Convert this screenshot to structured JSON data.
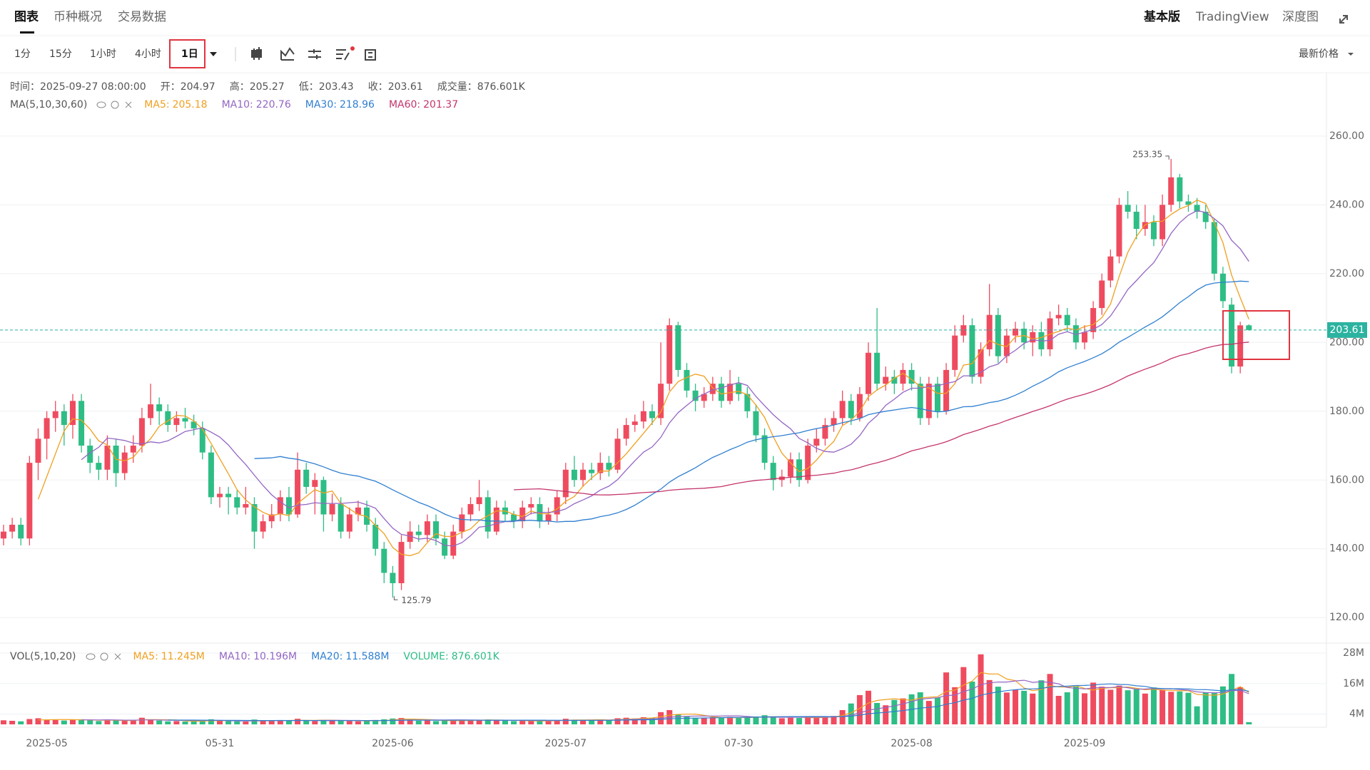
{
  "tabs": [
    "图表",
    "币种概况",
    "交易数据"
  ],
  "top_right": [
    "基本版",
    "TradingView",
    "深度图"
  ],
  "intervals": [
    "1分",
    "15分",
    "1小时",
    "4小时",
    "1日"
  ],
  "price_type": "最新价格",
  "chart_data": {
    "type": "candlestick",
    "time_label": "时间：",
    "time": "2025-09-27 08:00:00",
    "ohlc_labels": [
      "开：",
      "高：",
      "低：",
      "收："
    ],
    "volume_label": "成交量：",
    "volume_text": "876.601K",
    "ma_title": "MA(5,10,30,60)",
    "ma": [
      {
        "label": "MA5:",
        "value": 205.18,
        "period": 5,
        "color": "#f0a020"
      },
      {
        "label": "MA10:",
        "value": 220.76,
        "period": 10,
        "color": "#9466c4"
      },
      {
        "label": "MA30:",
        "value": 218.96,
        "period": 30,
        "color": "#2f7fd0"
      },
      {
        "label": "MA60:",
        "value": 201.37,
        "period": 60,
        "color": "#c4356c"
      }
    ],
    "vol_title": "VOL(5,10,20)",
    "vol_ma": [
      {
        "label": "MA5:",
        "value": "11.245M",
        "period": 5,
        "color": "#f0a020"
      },
      {
        "label": "MA10:",
        "value": "10.196M",
        "period": 10,
        "color": "#9466c4"
      },
      {
        "label": "MA20:",
        "value": "11.588M",
        "period": 20,
        "color": "#2f7fd0"
      }
    ],
    "vol_current": {
      "label": "VOLUME:",
      "value": "876.601K",
      "color": "#2ebd85"
    },
    "up_color": "#ef4b5f",
    "down_color": "#2ebd85",
    "last_color": "#2bb3a0",
    "ylim": [
      113,
      278
    ],
    "yticks": [
      {
        "value": 120,
        "label": "120.00"
      },
      {
        "value": 140,
        "label": "140.00"
      },
      {
        "value": 160,
        "label": "160.00"
      },
      {
        "value": 180,
        "label": "180.00"
      },
      {
        "value": 200,
        "label": "200.00"
      },
      {
        "value": 220,
        "label": "220.00"
      },
      {
        "value": 240,
        "label": "240.00"
      },
      {
        "value": 260,
        "label": "260.00"
      }
    ],
    "vol_ylim": [
      0,
      30.8
    ],
    "vol_yticks": [
      {
        "value": 4,
        "label": "4M"
      },
      {
        "value": 16,
        "label": "16M"
      },
      {
        "value": 28,
        "label": "28M"
      }
    ],
    "grid": true,
    "categories": [
      null,
      null,
      null,
      null,
      null,
      "2025-05",
      null,
      null,
      null,
      null,
      null,
      null,
      null,
      null,
      null,
      null,
      null,
      null,
      null,
      null,
      null,
      null,
      null,
      null,
      null,
      "05-31",
      null,
      null,
      null,
      null,
      null,
      null,
      null,
      null,
      null,
      null,
      null,
      null,
      null,
      null,
      null,
      null,
      null,
      null,
      null,
      "2025-06",
      null,
      null,
      null,
      null,
      null,
      null,
      null,
      null,
      null,
      null,
      null,
      null,
      null,
      null,
      null,
      null,
      null,
      null,
      null,
      "2025-07",
      null,
      null,
      null,
      null,
      null,
      null,
      null,
      null,
      null,
      null,
      null,
      null,
      null,
      null,
      null,
      null,
      null,
      null,
      null,
      "07-30",
      null,
      null,
      null,
      null,
      null,
      null,
      null,
      null,
      null,
      null,
      null,
      null,
      null,
      null,
      null,
      null,
      null,
      null,
      null,
      "2025-08",
      null,
      null,
      null,
      null,
      null,
      null,
      null,
      null,
      null,
      null,
      null,
      null,
      null,
      null,
      null,
      null,
      null,
      null,
      null,
      "2025-09",
      null,
      null,
      null,
      null,
      null,
      null,
      null,
      null,
      null,
      null,
      null,
      null,
      null,
      null,
      null,
      null,
      null,
      null,
      null
    ],
    "candles": [
      [
        143,
        147,
        141,
        145
      ],
      [
        145,
        149,
        143,
        147
      ],
      [
        147,
        149,
        141,
        143
      ],
      [
        143,
        167,
        141,
        165
      ],
      [
        165,
        175,
        160,
        172
      ],
      [
        172,
        180,
        166,
        178
      ],
      [
        178,
        183,
        174,
        180
      ],
      [
        180,
        182,
        170,
        176
      ],
      [
        176,
        185,
        172,
        183
      ],
      [
        183,
        185,
        168,
        170
      ],
      [
        170,
        172,
        162,
        165
      ],
      [
        165,
        167,
        160,
        163
      ],
      [
        163,
        173,
        160,
        170
      ],
      [
        170,
        172,
        158,
        162
      ],
      [
        162,
        170,
        160,
        168
      ],
      [
        168,
        173,
        165,
        170
      ],
      [
        170,
        181,
        168,
        178
      ],
      [
        178,
        188,
        176,
        182
      ],
      [
        182,
        184,
        176,
        180
      ],
      [
        180,
        182,
        174,
        176
      ],
      [
        176,
        180,
        174,
        178
      ],
      [
        178,
        181,
        175,
        177
      ],
      [
        177,
        179,
        173,
        175
      ],
      [
        175,
        177,
        166,
        168
      ],
      [
        168,
        170,
        153,
        155
      ],
      [
        155,
        158,
        152,
        156
      ],
      [
        156,
        158,
        150,
        155
      ],
      [
        155,
        157,
        150,
        152
      ],
      [
        152,
        158,
        150,
        153
      ],
      [
        153,
        155,
        140,
        145
      ],
      [
        145,
        150,
        143,
        148
      ],
      [
        148,
        153,
        146,
        150
      ],
      [
        150,
        157,
        148,
        155
      ],
      [
        155,
        158,
        148,
        150
      ],
      [
        150,
        168,
        149,
        163
      ],
      [
        163,
        165,
        156,
        158
      ],
      [
        158,
        162,
        150,
        160
      ],
      [
        160,
        161,
        145,
        150
      ],
      [
        150,
        156,
        148,
        153
      ],
      [
        153,
        155,
        143,
        145
      ],
      [
        145,
        152,
        143,
        150
      ],
      [
        150,
        154,
        148,
        152
      ],
      [
        152,
        154,
        145,
        147
      ],
      [
        147,
        149,
        138,
        140
      ],
      [
        140,
        142,
        130,
        133
      ],
      [
        133,
        135,
        125.79,
        130
      ],
      [
        130,
        144,
        128,
        142
      ],
      [
        142,
        148,
        140,
        145
      ],
      [
        145,
        147,
        142,
        144
      ],
      [
        144,
        150,
        142,
        148
      ],
      [
        148,
        150,
        141,
        143
      ],
      [
        143,
        145,
        137,
        138
      ],
      [
        138,
        147,
        137,
        145
      ],
      [
        145,
        152,
        143,
        150
      ],
      [
        150,
        155,
        148,
        153
      ],
      [
        153,
        160,
        151,
        155
      ],
      [
        155,
        157,
        143,
        145
      ],
      [
        145,
        154,
        144,
        152
      ],
      [
        152,
        154,
        148,
        150
      ],
      [
        150,
        151,
        146,
        148
      ],
      [
        148,
        154,
        146,
        152
      ],
      [
        152,
        155,
        150,
        153
      ],
      [
        153,
        155,
        146,
        148
      ],
      [
        148,
        152,
        147,
        150
      ],
      [
        150,
        157,
        148,
        155
      ],
      [
        155,
        165,
        153,
        163
      ],
      [
        163,
        167,
        158,
        160
      ],
      [
        160,
        165,
        158,
        163
      ],
      [
        163,
        165,
        160,
        162
      ],
      [
        162,
        168,
        160,
        165
      ],
      [
        165,
        167,
        161,
        163
      ],
      [
        163,
        175,
        162,
        172
      ],
      [
        172,
        178,
        170,
        176
      ],
      [
        176,
        179,
        174,
        177
      ],
      [
        177,
        183,
        175,
        180
      ],
      [
        180,
        182,
        176,
        178
      ],
      [
        178,
        200,
        176,
        188
      ],
      [
        188,
        207,
        186,
        205
      ],
      [
        205,
        206,
        190,
        192
      ],
      [
        192,
        194,
        184,
        186
      ],
      [
        186,
        188,
        180,
        183
      ],
      [
        183,
        187,
        181,
        185
      ],
      [
        185,
        190,
        183,
        188
      ],
      [
        188,
        190,
        181,
        183
      ],
      [
        183,
        192,
        182,
        188
      ],
      [
        188,
        190,
        183,
        185
      ],
      [
        185,
        187,
        178,
        180
      ],
      [
        180,
        182,
        171,
        173
      ],
      [
        173,
        175,
        163,
        165
      ],
      [
        165,
        167,
        157,
        160
      ],
      [
        160,
        163,
        158,
        161
      ],
      [
        161,
        168,
        159,
        166
      ],
      [
        166,
        168,
        158,
        160
      ],
      [
        160,
        172,
        159,
        170
      ],
      [
        170,
        175,
        168,
        172
      ],
      [
        172,
        178,
        170,
        176
      ],
      [
        176,
        180,
        174,
        178
      ],
      [
        178,
        186,
        176,
        183
      ],
      [
        183,
        185,
        176,
        178
      ],
      [
        178,
        187,
        177,
        185
      ],
      [
        185,
        200,
        183,
        197
      ],
      [
        197,
        210,
        186,
        188
      ],
      [
        188,
        193,
        186,
        190
      ],
      [
        190,
        192,
        185,
        188
      ],
      [
        188,
        194,
        186,
        192
      ],
      [
        192,
        194,
        186,
        188
      ],
      [
        188,
        190,
        176,
        178
      ],
      [
        178,
        190,
        176,
        188
      ],
      [
        188,
        190,
        178,
        180
      ],
      [
        180,
        194,
        179,
        192
      ],
      [
        192,
        205,
        190,
        202
      ],
      [
        202,
        208,
        200,
        205
      ],
      [
        205,
        207,
        188,
        190
      ],
      [
        190,
        200,
        188,
        198
      ],
      [
        198,
        217,
        196,
        208
      ],
      [
        208,
        210,
        194,
        196
      ],
      [
        196,
        204,
        194,
        202
      ],
      [
        202,
        206,
        200,
        204
      ],
      [
        204,
        206,
        198,
        200
      ],
      [
        200,
        205,
        196,
        203
      ],
      [
        203,
        206,
        196,
        198
      ],
      [
        198,
        209,
        196,
        207
      ],
      [
        207,
        211,
        205,
        208
      ],
      [
        208,
        210,
        203,
        205
      ],
      [
        205,
        207,
        198,
        200
      ],
      [
        200,
        205,
        198,
        203
      ],
      [
        203,
        212,
        201,
        210
      ],
      [
        210,
        220,
        208,
        218
      ],
      [
        218,
        227,
        216,
        225
      ],
      [
        225,
        242,
        223,
        240
      ],
      [
        240,
        244,
        236,
        238
      ],
      [
        238,
        240,
        230,
        233
      ],
      [
        233,
        240,
        231,
        235
      ],
      [
        235,
        237,
        228,
        230
      ],
      [
        230,
        243,
        228,
        240
      ],
      [
        240,
        253.35,
        238,
        248
      ],
      [
        248,
        249,
        239,
        241
      ],
      [
        241,
        243,
        238,
        240
      ],
      [
        240,
        242,
        236,
        238
      ],
      [
        238,
        240,
        233,
        235
      ],
      [
        235,
        236,
        218,
        220
      ],
      [
        220,
        222,
        210,
        212
      ],
      [
        211,
        213,
        191,
        193
      ],
      [
        193,
        206,
        191,
        204.97
      ],
      [
        204.97,
        205.27,
        203.43,
        203.61
      ]
    ],
    "volumes": [
      1.6,
      1.4,
      1.2,
      2.1,
      2.4,
      1.8,
      1.7,
      1.5,
      1.9,
      2.0,
      1.6,
      1.3,
      1.5,
      1.8,
      1.4,
      1.7,
      2.6,
      1.9,
      1.5,
      1.2,
      1.3,
      1.1,
      1.2,
      1.6,
      2.0,
      1.4,
      1.3,
      1.2,
      1.1,
      1.9,
      1.5,
      1.3,
      1.6,
      1.4,
      2.2,
      1.5,
      1.3,
      1.8,
      1.4,
      1.6,
      1.3,
      1.2,
      1.4,
      1.7,
      2.0,
      2.3,
      2.5,
      1.8,
      1.4,
      1.5,
      1.3,
      1.6,
      1.5,
      1.7,
      1.6,
      1.8,
      1.9,
      1.5,
      1.4,
      1.3,
      1.4,
      1.3,
      1.5,
      1.4,
      1.6,
      2.2,
      1.8,
      1.7,
      1.5,
      1.9,
      1.6,
      2.4,
      2.6,
      2.3,
      2.8,
      2.5,
      4.8,
      5.6,
      3.9,
      3.2,
      2.6,
      2.4,
      2.8,
      2.5,
      2.9,
      2.6,
      2.7,
      3.1,
      3.6,
      3.0,
      2.4,
      2.6,
      2.5,
      3.0,
      2.7,
      2.9,
      3.3,
      5.6,
      8.2,
      11.5,
      13.2,
      8.4,
      7.5,
      9.6,
      10.2,
      11.8,
      12.6,
      9.2,
      10.5,
      20.4,
      14.6,
      22.5,
      16.8,
      27.5,
      17.4,
      14.8,
      12.5,
      13.6,
      13.2,
      12.1,
      17.3,
      19.8,
      11.2,
      12.6,
      14.8,
      12.2,
      16.4,
      14.8,
      13.6,
      15.2,
      13.4,
      13.8,
      12.1,
      14.5,
      13.6,
      12.8,
      12.9,
      12.4,
      7.1,
      12.6,
      12.3,
      14.9,
      19.8,
      14.6,
      0.876601
    ]
  }
}
